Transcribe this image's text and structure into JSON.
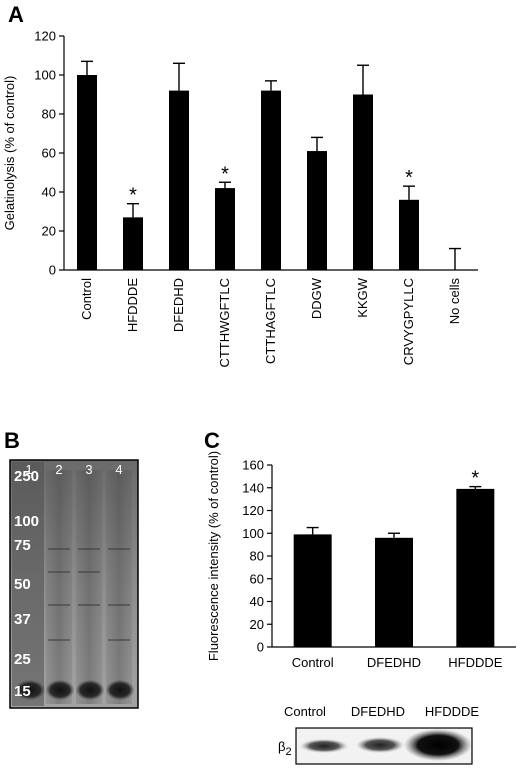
{
  "panels": {
    "a": "A",
    "b": "B",
    "c": "C"
  },
  "chart_data": [
    {
      "type": "bar",
      "panel": "A",
      "ylabel": "Gelatinolysis (% of control)",
      "ylim": [
        0,
        120
      ],
      "yticks": [
        0,
        20,
        40,
        60,
        80,
        100,
        120
      ],
      "categories": [
        "Control",
        "HFDDDE",
        "DFEDHD",
        "CTTHWGFTLC",
        "CTTHAGFTLC",
        "DDGW",
        "KKGW",
        "CRVYGPYLLC",
        "No cells"
      ],
      "values": [
        100,
        27,
        92,
        42,
        92,
        61,
        90,
        36,
        0
      ],
      "errors": [
        7,
        7,
        14,
        3,
        5,
        7,
        15,
        7,
        11
      ],
      "significant": [
        false,
        true,
        false,
        true,
        false,
        false,
        false,
        true,
        false
      ],
      "marker": "*"
    },
    {
      "type": "bar",
      "panel": "C",
      "ylabel": "Fluorescence intensity (% of control)",
      "ylim": [
        0,
        160
      ],
      "yticks": [
        0,
        20,
        40,
        60,
        80,
        100,
        120,
        140,
        160
      ],
      "categories": [
        "Control",
        "DFEDHD",
        "HFDDDE"
      ],
      "values": [
        99,
        96,
        139
      ],
      "errors": [
        6,
        4,
        2
      ],
      "significant": [
        false,
        false,
        true
      ],
      "marker": "*"
    }
  ],
  "gel": {
    "lanes": [
      "1",
      "2",
      "3",
      "4"
    ],
    "markers": [
      "250",
      "100",
      "75",
      "50",
      "37",
      "25",
      "15"
    ]
  },
  "blot": {
    "lanes": [
      "Control",
      "DFEDHD",
      "HFDDDE"
    ],
    "label": "β",
    "label_sub": "2"
  }
}
